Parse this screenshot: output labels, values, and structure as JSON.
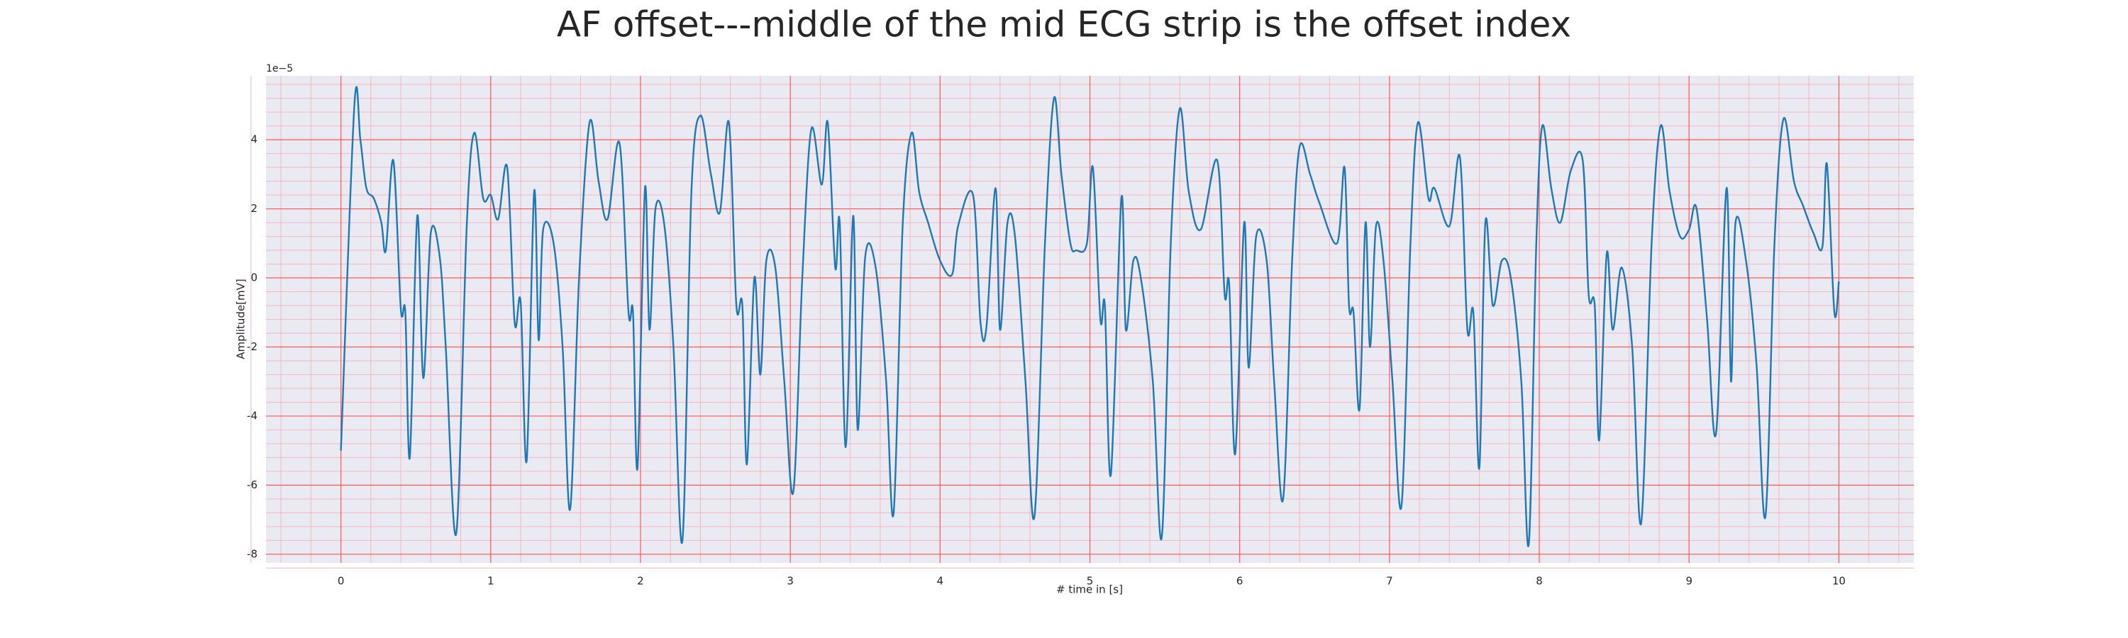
{
  "chart_data": {
    "type": "line",
    "title": "AF offset---middle of the mid ECG strip is the offset index",
    "x_label": "# time in [s]",
    "y_label": "Amplitude[mV]",
    "y_offset_label": "1e−5",
    "color": "#1f77b4",
    "grid": true,
    "minor_grid": true,
    "xlim": [
      -0.5,
      10.5
    ],
    "ylim": [
      -8.25,
      5.85
    ],
    "xticks": [
      0,
      1,
      2,
      3,
      4,
      5,
      6,
      7,
      8,
      9,
      10
    ],
    "yticks": [
      -8,
      -6,
      -4,
      -2,
      0,
      2,
      4
    ],
    "x": [
      0.0,
      0.09,
      0.13,
      0.17,
      0.22,
      0.27,
      0.3,
      0.35,
      0.4,
      0.43,
      0.46,
      0.51,
      0.55,
      0.6,
      0.66,
      0.7,
      0.77,
      0.84,
      0.89,
      0.95,
      1.0,
      1.05,
      1.11,
      1.16,
      1.2,
      1.24,
      1.29,
      1.32,
      1.35,
      1.42,
      1.48,
      1.53,
      1.59,
      1.66,
      1.72,
      1.78,
      1.86,
      1.92,
      1.95,
      1.98,
      2.03,
      2.06,
      2.1,
      2.16,
      2.22,
      2.28,
      2.34,
      2.4,
      2.47,
      2.53,
      2.59,
      2.64,
      2.68,
      2.71,
      2.76,
      2.8,
      2.84,
      2.9,
      2.96,
      3.02,
      3.08,
      3.14,
      3.21,
      3.25,
      3.3,
      3.33,
      3.37,
      3.42,
      3.45,
      3.5,
      3.57,
      3.64,
      3.69,
      3.75,
      3.81,
      3.86,
      3.92,
      4.0,
      4.08,
      4.12,
      4.22,
      4.27,
      4.31,
      4.37,
      4.4,
      4.45,
      4.5,
      4.57,
      4.63,
      4.7,
      4.76,
      4.81,
      4.87,
      4.91,
      4.98,
      5.02,
      5.07,
      5.1,
      5.14,
      5.21,
      5.24,
      5.29,
      5.34,
      5.42,
      5.48,
      5.54,
      5.6,
      5.66,
      5.74,
      5.85,
      5.9,
      5.93,
      5.97,
      6.03,
      6.06,
      6.11,
      6.18,
      6.23,
      6.29,
      6.35,
      6.4,
      6.47,
      6.53,
      6.65,
      6.7,
      6.73,
      6.76,
      6.8,
      6.84,
      6.87,
      6.91,
      6.96,
      7.02,
      7.08,
      7.14,
      7.19,
      7.26,
      7.3,
      7.4,
      7.47,
      7.52,
      7.56,
      7.6,
      7.64,
      7.69,
      7.75,
      7.81,
      7.88,
      7.93,
      7.98,
      8.02,
      8.08,
      8.14,
      8.21,
      8.29,
      8.33,
      8.37,
      8.4,
      8.45,
      8.49,
      8.55,
      8.62,
      8.68,
      8.75,
      8.81,
      8.87,
      8.94,
      9.0,
      9.05,
      9.12,
      9.18,
      9.25,
      9.28,
      9.31,
      9.38,
      9.45,
      9.51,
      9.57,
      9.63,
      9.7,
      9.76,
      9.83,
      9.89,
      9.92,
      9.97,
      10.0
    ],
    "values": [
      -5.0,
      5.0,
      4.0,
      2.6,
      2.3,
      1.6,
      0.8,
      3.4,
      -0.9,
      -1.0,
      -5.2,
      1.8,
      -2.9,
      1.3,
      0.6,
      -2.0,
      -7.4,
      1.5,
      4.2,
      2.3,
      2.4,
      1.7,
      3.2,
      -1.3,
      -0.7,
      -5.3,
      2.5,
      -1.8,
      1.4,
      1.0,
      -2.0,
      -6.7,
      0.0,
      4.5,
      2.8,
      1.7,
      3.9,
      -1.0,
      -1.0,
      -5.5,
      2.6,
      -1.5,
      2.0,
      1.5,
      -2.0,
      -7.6,
      2.5,
      4.7,
      3.0,
      1.9,
      4.5,
      -0.8,
      -0.8,
      -5.4,
      0.0,
      -2.8,
      0.5,
      0.3,
      -3.0,
      -6.2,
      0.0,
      4.3,
      2.7,
      4.5,
      0.3,
      1.6,
      -4.9,
      1.8,
      -4.4,
      0.6,
      0.3,
      -3.0,
      -6.8,
      1.5,
      4.2,
      2.5,
      1.6,
      0.5,
      0.1,
      1.5,
      2.4,
      -1.3,
      -1.4,
      2.6,
      -1.5,
      1.6,
      1.2,
      -3.0,
      -6.9,
      1.0,
      5.2,
      3.0,
      1.0,
      0.8,
      1.0,
      3.2,
      -1.2,
      -0.8,
      -5.7,
      2.3,
      -1.5,
      0.5,
      0.0,
      -3.0,
      -7.5,
      1.0,
      4.9,
      2.5,
      1.4,
      3.4,
      -0.5,
      -0.2,
      -5.1,
      1.6,
      -2.6,
      1.2,
      0.5,
      -3.0,
      -6.4,
      0.5,
      3.8,
      3.0,
      2.2,
      1.0,
      3.2,
      -0.8,
      -1.0,
      -3.8,
      1.6,
      -2.0,
      1.5,
      0.5,
      -3.0,
      -6.6,
      1.0,
      4.5,
      2.3,
      2.6,
      1.5,
      3.5,
      -1.5,
      -1.0,
      -5.5,
      1.6,
      -0.8,
      0.5,
      0.0,
      -3.0,
      -7.7,
      1.0,
      4.4,
      2.6,
      1.6,
      3.1,
      3.4,
      -0.5,
      -0.8,
      -4.7,
      0.7,
      -1.5,
      0.3,
      -2.0,
      -7.1,
      1.0,
      4.4,
      2.5,
      1.2,
      1.4,
      2.0,
      -1.2,
      -4.5,
      2.6,
      -3.0,
      1.6,
      0.5,
      -2.5,
      -6.9,
      1.0,
      4.6,
      2.8,
      2.1,
      1.3,
      0.9,
      3.3,
      -1.0,
      -0.1
    ]
  }
}
